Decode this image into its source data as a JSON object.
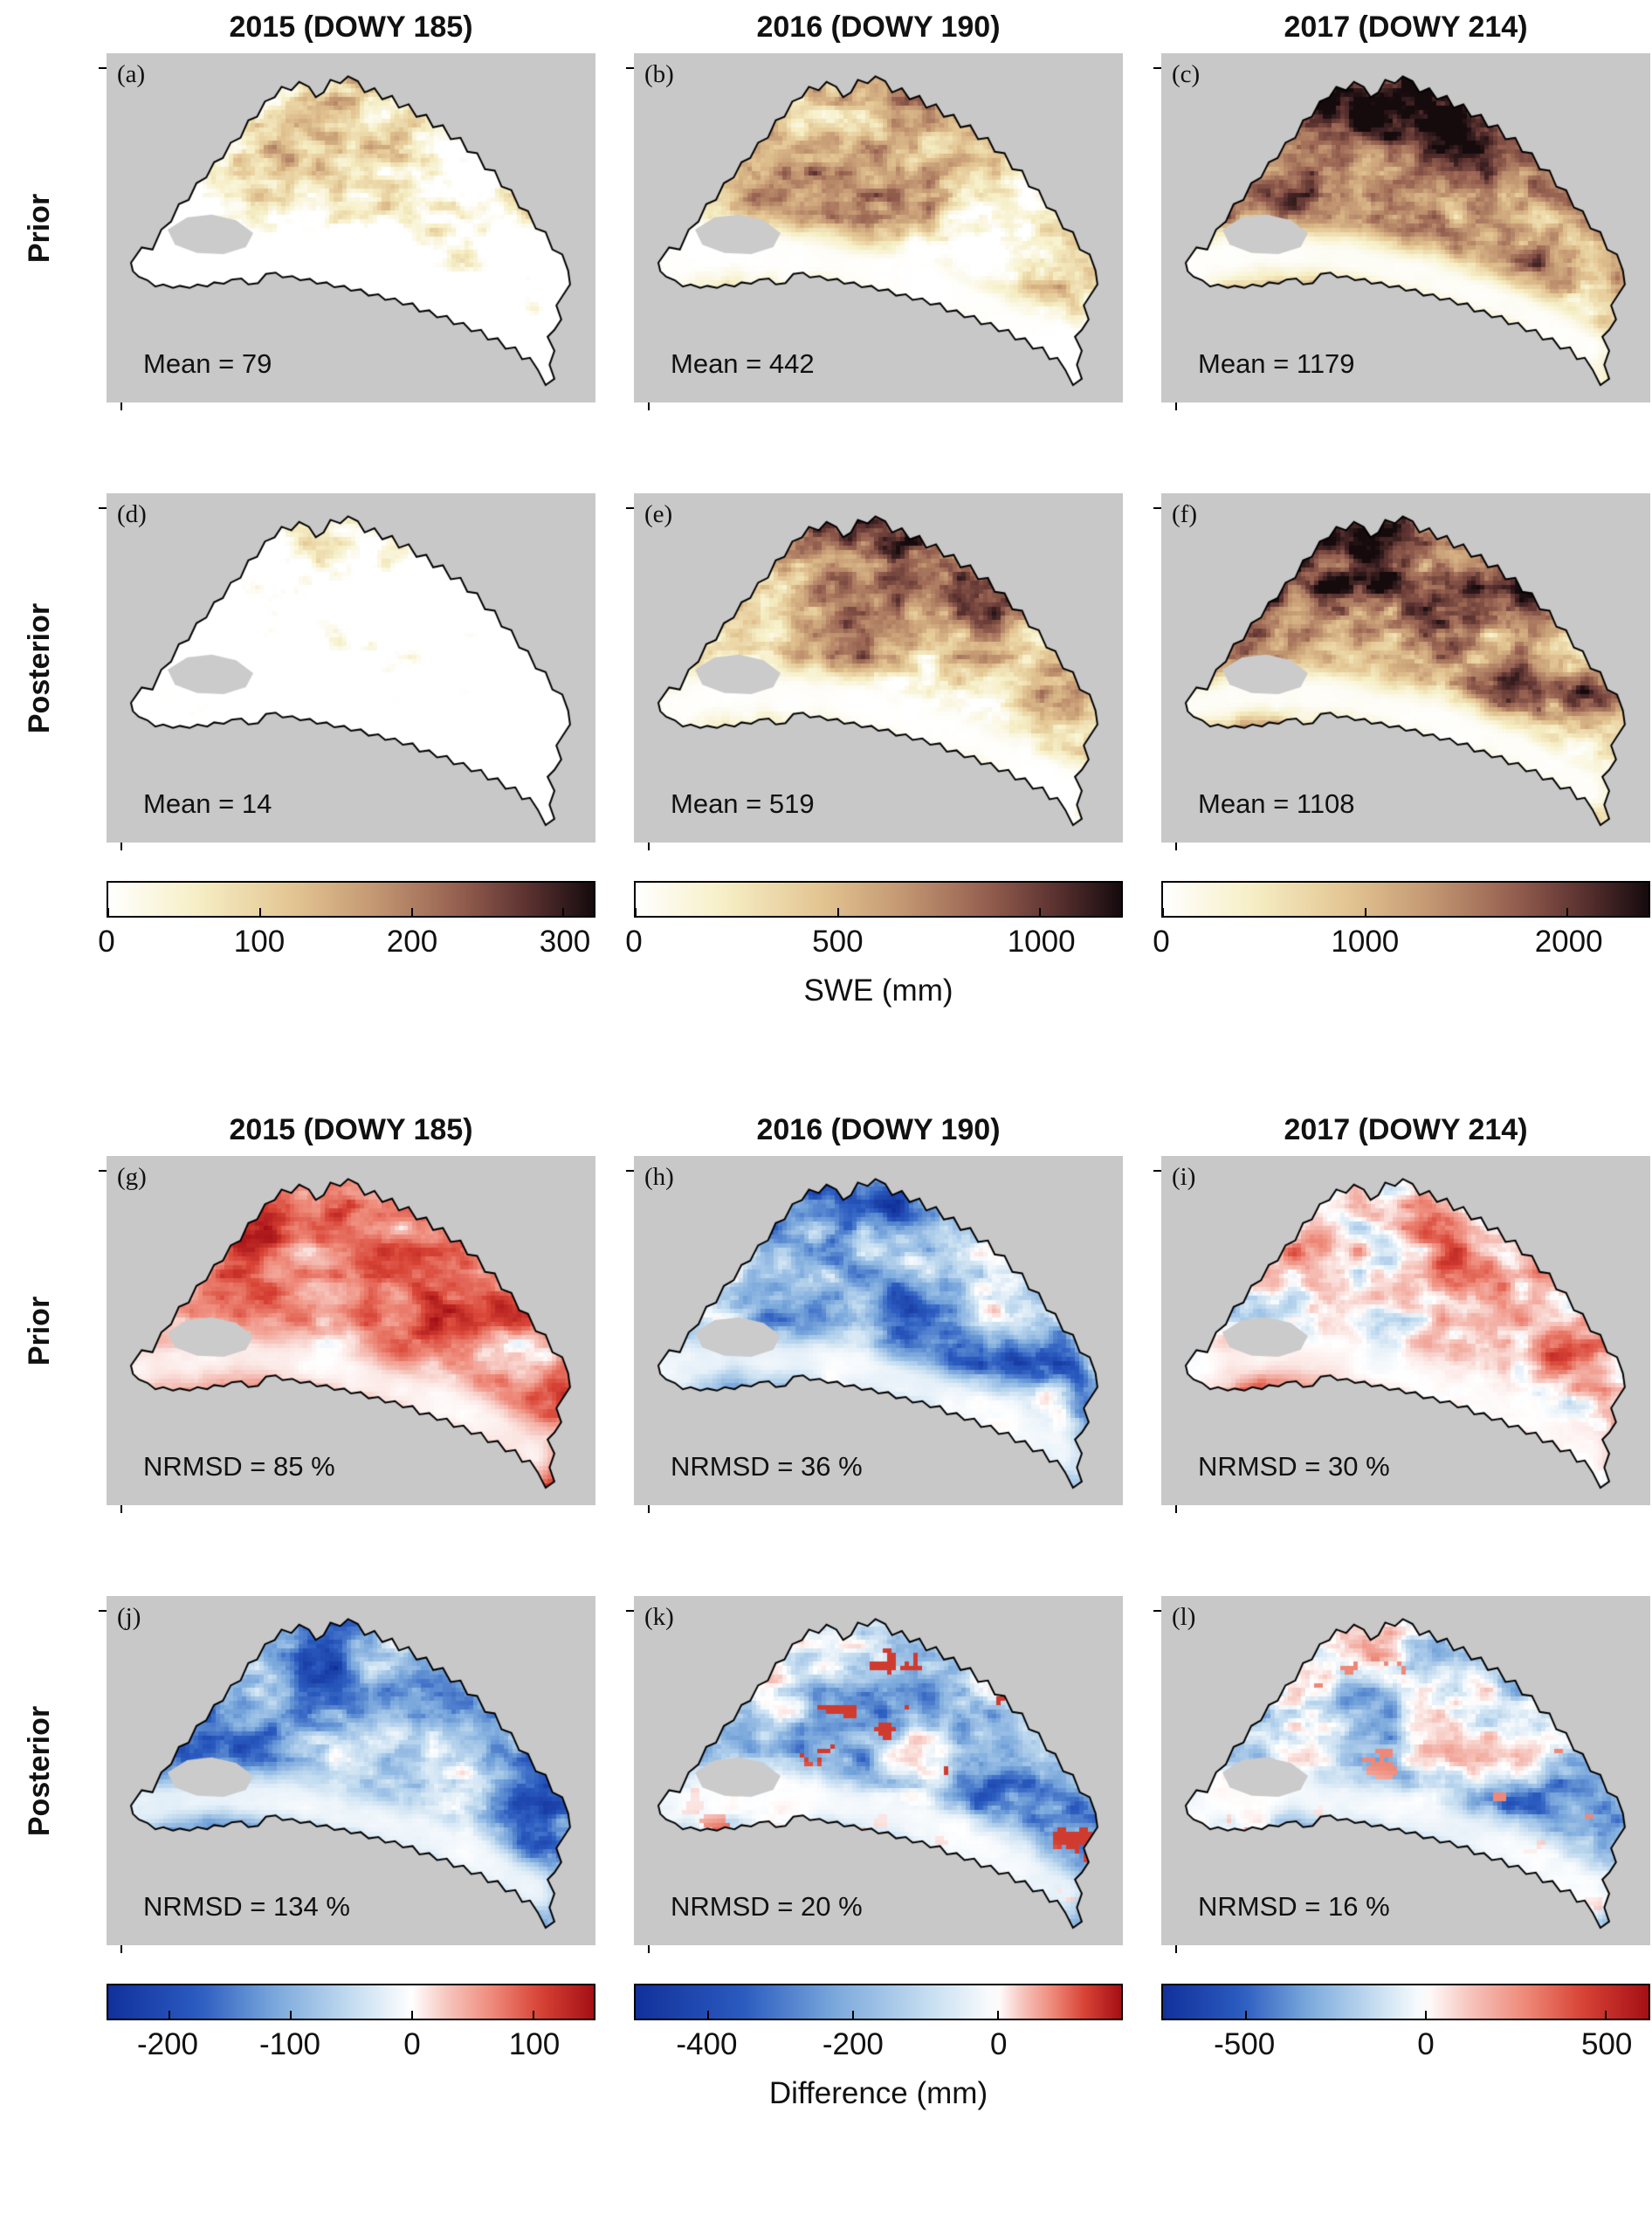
{
  "colors": {
    "panel_bg": "#c8c8c8",
    "mask_gray": "#cbcbcb",
    "outline": "#000000",
    "text": "#111111"
  },
  "palettes": {
    "swe": [
      [
        0,
        "#ffffff"
      ],
      [
        0.18,
        "#f6efc6"
      ],
      [
        0.38,
        "#e3c592"
      ],
      [
        0.55,
        "#c39772"
      ],
      [
        0.72,
        "#966050"
      ],
      [
        0.86,
        "#5d3331"
      ],
      [
        0.95,
        "#2f191b"
      ],
      [
        1,
        "#150a0c"
      ]
    ],
    "diff": [
      [
        -1,
        "#11309b"
      ],
      [
        -0.7,
        "#2b5cc0"
      ],
      [
        -0.45,
        "#7aa8dc"
      ],
      [
        -0.2,
        "#c3dcf0"
      ],
      [
        0,
        "#ffffff"
      ],
      [
        0.2,
        "#f6c4bc"
      ],
      [
        0.45,
        "#ee8878"
      ],
      [
        0.7,
        "#d84436"
      ],
      [
        1,
        "#a50f15"
      ]
    ]
  },
  "sections": [
    {
      "titles": [
        "2015 (DOWY 185)",
        "2016 (DOWY 190)",
        "2017 (DOWY 214)"
      ],
      "row_labels": [
        "Prior",
        "Posterior"
      ],
      "unit_label": "SWE (mm)",
      "panels": [
        {
          "letter": "(a)",
          "stat": "Mean = 79",
          "map": {
            "kind": "swe",
            "thresh": 0.52,
            "gain": 2.0,
            "seed": 11
          }
        },
        {
          "letter": "(b)",
          "stat": "Mean = 442",
          "map": {
            "kind": "swe",
            "thresh": 0.34,
            "gain": 1.8,
            "seed": 22
          }
        },
        {
          "letter": "(c)",
          "stat": "Mean = 1179",
          "map": {
            "kind": "swe",
            "thresh": 0.2,
            "gain": 1.8,
            "seed": 33
          }
        },
        {
          "letter": "(d)",
          "stat": "Mean = 14",
          "map": {
            "kind": "swe",
            "thresh": 0.68,
            "gain": 1.8,
            "seed": 44
          }
        },
        {
          "letter": "(e)",
          "stat": "Mean = 519",
          "map": {
            "kind": "swe",
            "thresh": 0.28,
            "gain": 1.8,
            "seed": 55
          }
        },
        {
          "letter": "(f)",
          "stat": "Mean = 1108",
          "map": {
            "kind": "swe",
            "thresh": 0.22,
            "gain": 1.9,
            "seed": 66
          }
        }
      ],
      "colorbars": [
        {
          "palette": "swe",
          "zero_pos": 0,
          "ticks": [
            {
              "label": "0",
              "pos": 0.0
            },
            {
              "label": "100",
              "pos": 0.3125
            },
            {
              "label": "200",
              "pos": 0.625
            },
            {
              "label": "300",
              "pos": 0.9375
            }
          ]
        },
        {
          "palette": "swe",
          "zero_pos": 0,
          "ticks": [
            {
              "label": "0",
              "pos": 0.0
            },
            {
              "label": "500",
              "pos": 0.4167
            },
            {
              "label": "1000",
              "pos": 0.8333
            }
          ]
        },
        {
          "palette": "swe",
          "zero_pos": 0,
          "ticks": [
            {
              "label": "0",
              "pos": 0.0
            },
            {
              "label": "1000",
              "pos": 0.4167
            },
            {
              "label": "2000",
              "pos": 0.8333
            }
          ]
        }
      ]
    },
    {
      "titles": [
        "2015 (DOWY 185)",
        "2016 (DOWY 190)",
        "2017 (DOWY 214)"
      ],
      "row_labels": [
        "Prior",
        "Posterior"
      ],
      "unit_label": "Difference (mm)",
      "panels": [
        {
          "letter": "(g)",
          "stat": "NRMSD = 85 %",
          "map": {
            "kind": "diff",
            "bias": 0.5,
            "amp": 0.8,
            "seed": 77
          }
        },
        {
          "letter": "(h)",
          "stat": "NRMSD = 36 %",
          "map": {
            "kind": "diff",
            "bias": -0.42,
            "amp": 0.75,
            "seed": 88
          }
        },
        {
          "letter": "(i)",
          "stat": "NRMSD = 30 %",
          "map": {
            "kind": "diff",
            "bias": 0.05,
            "amp": 1.05,
            "seed": 99
          }
        },
        {
          "letter": "(j)",
          "stat": "NRMSD = 134 %",
          "map": {
            "kind": "diff",
            "bias": -0.5,
            "amp": 0.55,
            "seed": 111
          }
        },
        {
          "letter": "(k)",
          "stat": "NRMSD = 20 %",
          "map": {
            "kind": "diff",
            "bias": -0.28,
            "amp": 0.6,
            "speckle": 0.75,
            "speckleThresh": 0.74,
            "seed": 122
          }
        },
        {
          "letter": "(l)",
          "stat": "NRMSD = 16 %",
          "map": {
            "kind": "diff",
            "bias": -0.18,
            "amp": 0.7,
            "speckle": 0.45,
            "speckleThresh": 0.78,
            "seed": 133
          }
        }
      ],
      "colorbars": [
        {
          "palette": "diff",
          "zero_pos": 0.625,
          "ticks": [
            {
              "label": "-200",
              "pos": 0.125
            },
            {
              "label": "-100",
              "pos": 0.375
            },
            {
              "label": "0",
              "pos": 0.625
            },
            {
              "label": "100",
              "pos": 0.875
            }
          ]
        },
        {
          "palette": "diff",
          "zero_pos": 0.746,
          "ticks": [
            {
              "label": "-400",
              "pos": 0.149
            },
            {
              "label": "-200",
              "pos": 0.448
            },
            {
              "label": "0",
              "pos": 0.746
            }
          ]
        },
        {
          "palette": "diff",
          "zero_pos": 0.541,
          "ticks": [
            {
              "label": "-500",
              "pos": 0.17
            },
            {
              "label": "0",
              "pos": 0.541
            },
            {
              "label": "500",
              "pos": 0.911
            }
          ]
        }
      ]
    }
  ],
  "chart_data": {
    "type": "heatmap",
    "title": "Prior and posterior SWE maps and difference maps over a mountain basin",
    "columns": [
      "2015 (DOWY 185)",
      "2016 (DOWY 190)",
      "2017 (DOWY 214)"
    ],
    "rows": [
      "Prior",
      "Posterior"
    ],
    "swe_maps": {
      "unit": "SWE (mm)",
      "panels": [
        {
          "id": "(a)",
          "row": "Prior",
          "column": "2015 (DOWY 185)",
          "mean_swe_mm": 79
        },
        {
          "id": "(b)",
          "row": "Prior",
          "column": "2016 (DOWY 190)",
          "mean_swe_mm": 442
        },
        {
          "id": "(c)",
          "row": "Prior",
          "column": "2017 (DOWY 214)",
          "mean_swe_mm": 1179
        },
        {
          "id": "(d)",
          "row": "Posterior",
          "column": "2015 (DOWY 185)",
          "mean_swe_mm": 14
        },
        {
          "id": "(e)",
          "row": "Posterior",
          "column": "2016 (DOWY 190)",
          "mean_swe_mm": 519
        },
        {
          "id": "(f)",
          "row": "Posterior",
          "column": "2017 (DOWY 214)",
          "mean_swe_mm": 1108
        }
      ],
      "colorbar_ticks": [
        [
          0,
          100,
          200,
          300
        ],
        [
          0,
          500,
          1000
        ],
        [
          0,
          1000,
          2000
        ]
      ],
      "colorbar_ranges": [
        [
          0,
          320
        ],
        [
          0,
          1200
        ],
        [
          0,
          2400
        ]
      ],
      "colormap": "white-yellow-brown-black"
    },
    "difference_maps": {
      "unit": "Difference (mm)",
      "panels": [
        {
          "id": "(g)",
          "row": "Prior",
          "column": "2015 (DOWY 185)",
          "nrmsd_percent": 85
        },
        {
          "id": "(h)",
          "row": "Prior",
          "column": "2016 (DOWY 190)",
          "nrmsd_percent": 36
        },
        {
          "id": "(i)",
          "row": "Prior",
          "column": "2017 (DOWY 214)",
          "nrmsd_percent": 30
        },
        {
          "id": "(j)",
          "row": "Posterior",
          "column": "2015 (DOWY 185)",
          "nrmsd_percent": 134
        },
        {
          "id": "(k)",
          "row": "Posterior",
          "column": "2016 (DOWY 190)",
          "nrmsd_percent": 20
        },
        {
          "id": "(l)",
          "row": "Posterior",
          "column": "2017 (DOWY 214)",
          "nrmsd_percent": 16
        }
      ],
      "colorbar_ticks": [
        [
          -200,
          -100,
          0,
          100
        ],
        [
          -400,
          -200,
          0
        ],
        [
          -500,
          0,
          500
        ]
      ],
      "colorbar_ranges": [
        [
          -250,
          150
        ],
        [
          -500,
          170
        ],
        [
          -730,
          620
        ]
      ],
      "colormap": "blue-white-red diverging"
    }
  }
}
